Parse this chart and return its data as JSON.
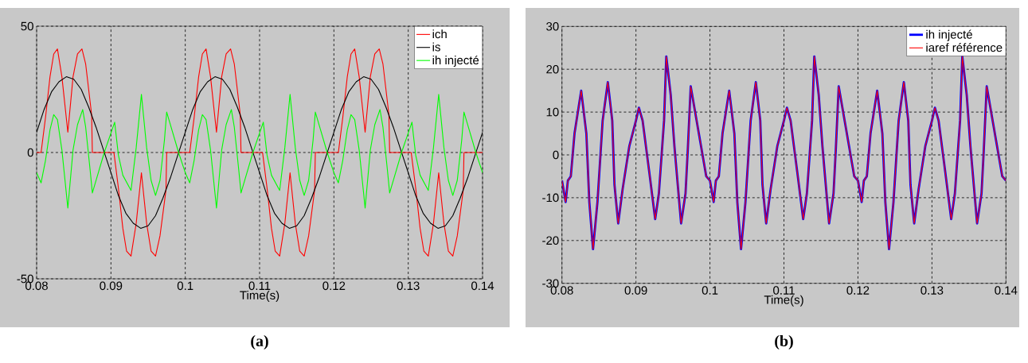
{
  "chart_data": [
    {
      "type": "line",
      "title": "(a)",
      "xlabel": "Time(s)",
      "xlim": [
        0.08,
        0.14
      ],
      "ylim": [
        -50,
        50
      ],
      "xticks": [
        0.08,
        0.09,
        0.1,
        0.11,
        0.12,
        0.13,
        0.14
      ],
      "yticks": [
        -50,
        0,
        50
      ],
      "grid": true,
      "legend": "top right",
      "series": [
        {
          "name": "ich",
          "color": "#ff0000",
          "x": [
            0.08,
            0.0806,
            0.0812,
            0.0818,
            0.0823,
            0.0828,
            0.0834,
            0.0842,
            0.0849,
            0.0855,
            0.0861,
            0.0866,
            0.0874,
            0.0875,
            0.0904,
            0.091,
            0.0916,
            0.0921,
            0.0927,
            0.0934,
            0.0941,
            0.0948,
            0.0954,
            0.096,
            0.0966,
            0.0974,
            0.0975,
            0.1,
            0.1006,
            0.1012,
            0.1018,
            0.1023,
            0.1028,
            0.1034,
            0.1042,
            0.1049,
            0.1055,
            0.1061,
            0.1066,
            0.1074,
            0.1075,
            0.1104,
            0.111,
            0.1116,
            0.1121,
            0.1127,
            0.1134,
            0.1141,
            0.1148,
            0.1154,
            0.116,
            0.1166,
            0.1174,
            0.1175,
            0.12,
            0.1206,
            0.1212,
            0.1218,
            0.1223,
            0.1228,
            0.1234,
            0.1242,
            0.1249,
            0.1255,
            0.1261,
            0.1266,
            0.1274,
            0.1275,
            0.1304,
            0.131,
            0.1316,
            0.1321,
            0.1327,
            0.1334,
            0.1341,
            0.1348,
            0.1354,
            0.136,
            0.1366,
            0.1374,
            0.1375,
            0.14
          ],
          "values": [
            0,
            0,
            14,
            30,
            39,
            41,
            30,
            8,
            30,
            39,
            41,
            35,
            15,
            0,
            0,
            -14,
            -30,
            -39,
            -41,
            -28,
            -8,
            -28,
            -39,
            -41,
            -33,
            -15,
            0,
            0,
            0,
            14,
            30,
            39,
            41,
            30,
            8,
            30,
            39,
            41,
            35,
            15,
            0,
            0,
            -14,
            -30,
            -39,
            -41,
            -28,
            -8,
            -28,
            -39,
            -41,
            -33,
            -15,
            0,
            0,
            0,
            14,
            30,
            39,
            41,
            30,
            8,
            30,
            39,
            41,
            35,
            15,
            0,
            0,
            -14,
            -30,
            -39,
            -41,
            -28,
            -8,
            -28,
            -39,
            -41,
            -33,
            -15,
            0,
            0
          ]
        },
        {
          "name": "is",
          "color": "#000000",
          "x": [
            0.08,
            0.081,
            0.082,
            0.083,
            0.084,
            0.085,
            0.086,
            0.087,
            0.088,
            0.089,
            0.09,
            0.091,
            0.092,
            0.093,
            0.094,
            0.095,
            0.096,
            0.097,
            0.098,
            0.099,
            0.1,
            0.101,
            0.102,
            0.103,
            0.104,
            0.105,
            0.106,
            0.107,
            0.108,
            0.109,
            0.11,
            0.111,
            0.112,
            0.113,
            0.114,
            0.115,
            0.116,
            0.117,
            0.118,
            0.119,
            0.12,
            0.121,
            0.122,
            0.123,
            0.124,
            0.125,
            0.126,
            0.127,
            0.128,
            0.129,
            0.13,
            0.131,
            0.132,
            0.133,
            0.134,
            0.135,
            0.136,
            0.137,
            0.138,
            0.139,
            0.14
          ],
          "values": [
            8,
            17,
            24,
            28,
            30,
            29,
            25,
            18,
            10,
            1,
            -8,
            -17,
            -24,
            -28,
            -30,
            -29,
            -25,
            -18,
            -10,
            -1,
            8,
            17,
            24,
            28,
            30,
            29,
            25,
            18,
            10,
            1,
            -8,
            -17,
            -24,
            -28,
            -30,
            -29,
            -25,
            -18,
            -10,
            -1,
            8,
            17,
            24,
            28,
            30,
            29,
            25,
            18,
            10,
            1,
            -8,
            -17,
            -24,
            -28,
            -30,
            -29,
            -25,
            -18,
            -10,
            -1,
            8
          ]
        },
        {
          "name": "ih injecté",
          "color": "#00ff00",
          "x": [
            0.08,
            0.0806,
            0.0812,
            0.0818,
            0.0823,
            0.0828,
            0.0834,
            0.0842,
            0.0849,
            0.0855,
            0.0862,
            0.0866,
            0.0872,
            0.0875,
            0.0891,
            0.0905,
            0.091,
            0.0916,
            0.0927,
            0.0934,
            0.0941,
            0.0948,
            0.0954,
            0.096,
            0.0966,
            0.0972,
            0.0975,
            0.0991,
            0.1,
            0.1006,
            0.1012,
            0.1018,
            0.1023,
            0.1028,
            0.1034,
            0.1042,
            0.1049,
            0.1055,
            0.1062,
            0.1066,
            0.1072,
            0.1075,
            0.1091,
            0.1105,
            0.111,
            0.1116,
            0.1127,
            0.1134,
            0.1141,
            0.1148,
            0.1154,
            0.116,
            0.1166,
            0.1172,
            0.1175,
            0.1191,
            0.12,
            0.1206,
            0.1212,
            0.1218,
            0.1223,
            0.1228,
            0.1234,
            0.1242,
            0.1249,
            0.1255,
            0.1262,
            0.1266,
            0.1272,
            0.1275,
            0.1291,
            0.1305,
            0.131,
            0.1316,
            0.1327,
            0.1334,
            0.1341,
            0.1348,
            0.1354,
            0.136,
            0.1366,
            0.1372,
            0.1375,
            0.1391,
            0.14
          ],
          "values": [
            -8,
            -12,
            -3,
            9,
            15,
            13,
            1,
            -22,
            1,
            11,
            17,
            10,
            -7,
            -16,
            0,
            12,
            -1,
            -9,
            -15,
            2,
            23,
            2,
            -11,
            -17,
            -11,
            5,
            16,
            0,
            -8,
            -12,
            -3,
            9,
            15,
            13,
            1,
            -22,
            1,
            11,
            17,
            10,
            -7,
            -16,
            0,
            12,
            -1,
            -9,
            -15,
            2,
            23,
            2,
            -11,
            -17,
            -11,
            5,
            16,
            0,
            -8,
            -12,
            -3,
            9,
            15,
            13,
            1,
            -22,
            1,
            11,
            17,
            10,
            -7,
            -16,
            0,
            12,
            -1,
            -9,
            -15,
            2,
            23,
            2,
            -11,
            -17,
            -11,
            5,
            16,
            0,
            -8
          ]
        }
      ]
    },
    {
      "type": "line",
      "title": "(b)",
      "xlabel": "Time(s)",
      "xlim": [
        0.08,
        0.14
      ],
      "ylim": [
        -30,
        30
      ],
      "xticks": [
        0.08,
        0.09,
        0.1,
        0.11,
        0.12,
        0.13,
        0.14
      ],
      "yticks": [
        -30,
        -20,
        -10,
        0,
        10,
        20,
        30
      ],
      "grid": true,
      "legend": "top right",
      "x": [
        0.08,
        0.0805,
        0.0808,
        0.0812,
        0.0817,
        0.0826,
        0.0833,
        0.0837,
        0.0842,
        0.0848,
        0.0855,
        0.0862,
        0.0868,
        0.0871,
        0.0876,
        0.0882,
        0.0891,
        0.09,
        0.0904,
        0.0909,
        0.0918,
        0.0926,
        0.0931,
        0.0938,
        0.0941,
        0.0947,
        0.0952,
        0.0958,
        0.0961,
        0.0967,
        0.097,
        0.0974,
        0.0979,
        0.0988,
        0.0995,
        0.1,
        0.1005,
        0.1008,
        0.1012,
        0.1017,
        0.1026,
        0.1033,
        0.1037,
        0.1042,
        0.1048,
        0.1055,
        0.1062,
        0.1068,
        0.1071,
        0.1076,
        0.1082,
        0.1091,
        0.11,
        0.1104,
        0.1109,
        0.1118,
        0.1126,
        0.1131,
        0.1138,
        0.1141,
        0.1147,
        0.1152,
        0.1158,
        0.1161,
        0.1167,
        0.117,
        0.1174,
        0.1179,
        0.1188,
        0.1195,
        0.12,
        0.1205,
        0.1208,
        0.1212,
        0.1217,
        0.1226,
        0.1233,
        0.1237,
        0.1242,
        0.1248,
        0.1255,
        0.1262,
        0.1268,
        0.1271,
        0.1276,
        0.1282,
        0.1291,
        0.13,
        0.1304,
        0.1309,
        0.1318,
        0.1326,
        0.1331,
        0.1338,
        0.1341,
        0.1347,
        0.1352,
        0.1358,
        0.1361,
        0.1367,
        0.137,
        0.1374,
        0.1379,
        0.1388,
        0.1395,
        0.14
      ],
      "series": [
        {
          "name": "ih injecté",
          "color": "#0000ff",
          "values": [
            -6,
            -11,
            -6,
            -5,
            5,
            15,
            5,
            -11,
            -22,
            -11,
            8,
            17,
            8,
            -7,
            -16,
            -8,
            2,
            8,
            11,
            8,
            -4,
            -15,
            -9,
            8,
            23,
            14,
            2,
            -10,
            -16,
            -9,
            1,
            16,
            11,
            2,
            -5,
            -6,
            -11,
            -6,
            -5,
            5,
            15,
            5,
            -11,
            -22,
            -11,
            8,
            17,
            8,
            -7,
            -16,
            -8,
            2,
            8,
            11,
            8,
            -4,
            -15,
            -9,
            8,
            23,
            14,
            2,
            -10,
            -16,
            -9,
            1,
            16,
            11,
            2,
            -5,
            -6,
            -11,
            -6,
            -5,
            5,
            15,
            5,
            -11,
            -22,
            -11,
            8,
            17,
            8,
            -7,
            -16,
            -8,
            2,
            8,
            11,
            8,
            -4,
            -15,
            -9,
            8,
            23,
            14,
            2,
            -10,
            -16,
            -9,
            1,
            16,
            11,
            2,
            -5,
            -6
          ]
        },
        {
          "name": "iaref référence",
          "color": "#ff0000",
          "values": [
            -6,
            -11,
            -6,
            -5,
            5,
            15,
            5,
            -11,
            -22,
            -11,
            8,
            17,
            8,
            -7,
            -16,
            -8,
            2,
            8,
            11,
            8,
            -4,
            -15,
            -9,
            8,
            23,
            14,
            2,
            -10,
            -16,
            -9,
            1,
            16,
            11,
            2,
            -5,
            -6,
            -11,
            -6,
            -5,
            5,
            15,
            5,
            -11,
            -22,
            -11,
            8,
            17,
            8,
            -7,
            -16,
            -8,
            2,
            8,
            11,
            8,
            -4,
            -15,
            -9,
            8,
            23,
            14,
            2,
            -10,
            -16,
            -9,
            1,
            16,
            11,
            2,
            -5,
            -6,
            -11,
            -6,
            -5,
            5,
            15,
            5,
            -11,
            -22,
            -11,
            8,
            17,
            8,
            -7,
            -16,
            -8,
            2,
            8,
            11,
            8,
            -4,
            -15,
            -9,
            8,
            23,
            14,
            2,
            -10,
            -16,
            -9,
            1,
            16,
            11,
            2,
            -5,
            -6
          ]
        }
      ]
    }
  ]
}
